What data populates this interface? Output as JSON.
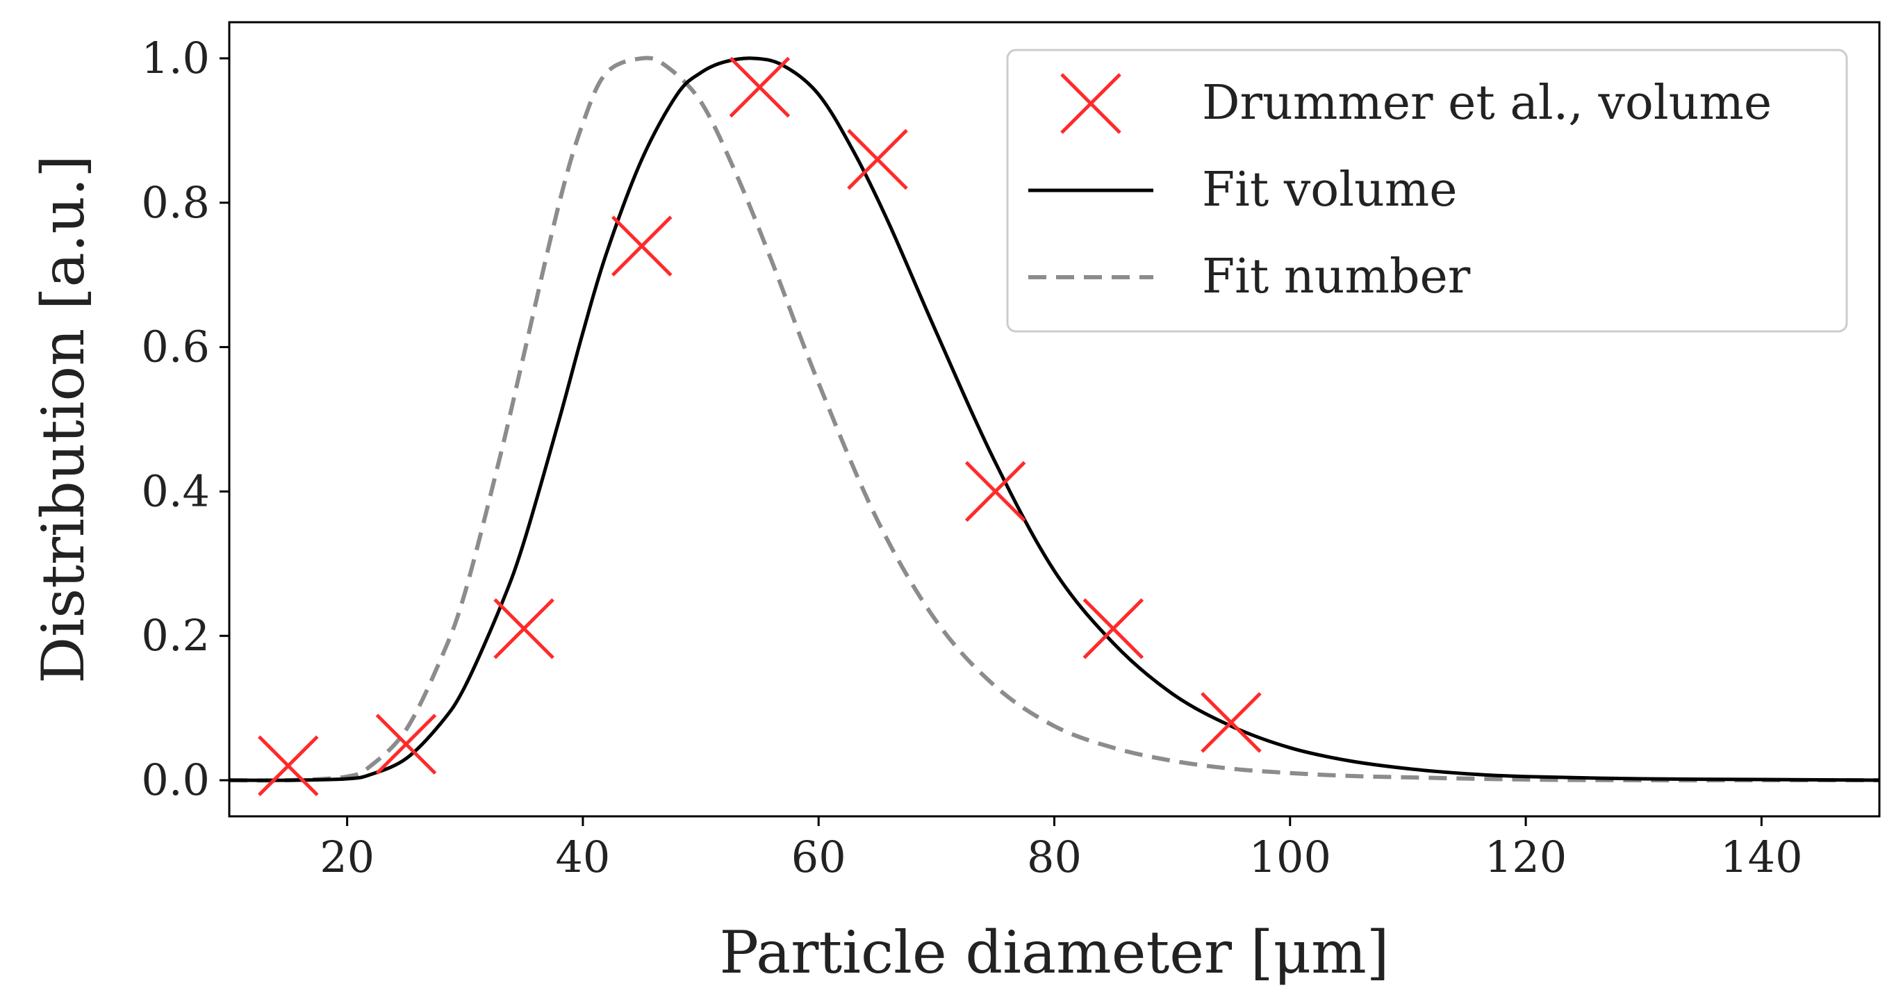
{
  "chart_data": {
    "type": "line",
    "title": "",
    "xlabel": "Particle diameter [μm]",
    "ylabel": "Distribution [a.u.]",
    "xlim": [
      10,
      150
    ],
    "ylim": [
      -0.05,
      1.05
    ],
    "x_ticks": [
      20,
      40,
      60,
      80,
      100,
      120,
      140
    ],
    "y_ticks": [
      0.0,
      0.2,
      0.4,
      0.6,
      0.8,
      1.0
    ],
    "x_tick_labels": [
      "20",
      "40",
      "60",
      "80",
      "100",
      "120",
      "140"
    ],
    "y_tick_labels": [
      "0.0",
      "0.2",
      "0.4",
      "0.6",
      "0.8",
      "1.0"
    ],
    "grid": false,
    "legend_position": "top-right",
    "series": [
      {
        "name": "Drummer et al., volume",
        "kind": "scatter",
        "marker": "x",
        "color": "#ff2a2a",
        "x": [
          15,
          25,
          35,
          45,
          55,
          65,
          75,
          85,
          95
        ],
        "y": [
          0.02,
          0.05,
          0.21,
          0.74,
          0.96,
          0.86,
          0.4,
          0.21,
          0.08
        ]
      },
      {
        "name": "Fit volume",
        "kind": "line",
        "style": "solid",
        "color": "#000000",
        "x": [
          10,
          15,
          20,
          22,
          25,
          28,
          30,
          33,
          35,
          38,
          40,
          42,
          45,
          48,
          50,
          52,
          54.5,
          57,
          60,
          63,
          66,
          70,
          75,
          80,
          85,
          90,
          95,
          100,
          105,
          110,
          115,
          120,
          130,
          140,
          150
        ],
        "y": [
          0.0,
          0.0,
          0.002,
          0.008,
          0.03,
          0.08,
          0.13,
          0.24,
          0.33,
          0.5,
          0.62,
          0.73,
          0.86,
          0.95,
          0.98,
          0.995,
          1.0,
          0.99,
          0.95,
          0.87,
          0.77,
          0.62,
          0.44,
          0.29,
          0.19,
          0.12,
          0.075,
          0.045,
          0.027,
          0.016,
          0.009,
          0.005,
          0.002,
          0.001,
          0.0
        ]
      },
      {
        "name": "Fit number",
        "kind": "line",
        "style": "dashed",
        "color": "#8c8c8c",
        "x": [
          10,
          15,
          20,
          22,
          25,
          28,
          30,
          33,
          35,
          38,
          40,
          42,
          45,
          47,
          50,
          53,
          56,
          60,
          65,
          70,
          75,
          80,
          85,
          90,
          95,
          100,
          105,
          110,
          120,
          130,
          140,
          150
        ],
        "y": [
          0.0,
          0.0,
          0.005,
          0.02,
          0.07,
          0.17,
          0.26,
          0.45,
          0.59,
          0.8,
          0.91,
          0.98,
          1.0,
          0.99,
          0.94,
          0.84,
          0.72,
          0.55,
          0.36,
          0.22,
          0.13,
          0.075,
          0.045,
          0.027,
          0.016,
          0.01,
          0.006,
          0.004,
          0.001,
          0.0,
          0.0,
          0.0
        ]
      }
    ]
  }
}
